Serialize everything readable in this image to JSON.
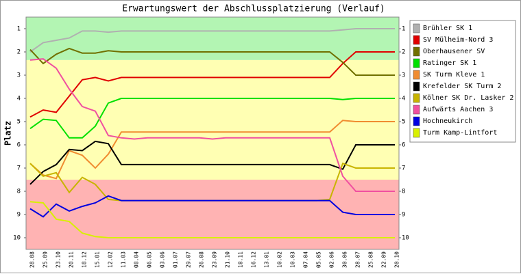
{
  "chart_data": {
    "type": "line",
    "title": "Erwartungswert der Abschlussplatzierung (Verlauf)",
    "y_label": "Platz",
    "categories": [
      "28.08",
      "25.09",
      "23.10",
      "20.11",
      "18.12",
      "15.01",
      "12.02",
      "11.03",
      "08.04",
      "06.05",
      "03.06",
      "01.07",
      "29.07",
      "26.08",
      "23.09",
      "21.10",
      "18.11",
      "16.12",
      "13.01",
      "10.02",
      "10.03",
      "07.04",
      "05.05",
      "02.06",
      "30.06",
      "28.07",
      "25.08",
      "22.09",
      "20.10"
    ],
    "ylim": [
      0.5,
      10.5
    ],
    "inverted": true,
    "yticks": [
      1,
      2,
      3,
      4,
      5,
      6,
      7,
      8,
      9,
      10
    ],
    "bands": [
      {
        "from": 0.5,
        "to": 2.35,
        "color": "#b3f5b3"
      },
      {
        "from": 2.35,
        "to": 7.5,
        "color": "#ffffb3"
      },
      {
        "from": 7.5,
        "to": 10.5,
        "color": "#ffb3b3"
      }
    ],
    "series": [
      {
        "name": "Brühler SK 1",
        "color": "#b0b0b0",
        "values": [
          2,
          1.6,
          1.5,
          1.4,
          1.1,
          1.1,
          1.15,
          1.1,
          1.1,
          1.1,
          1.1,
          1.1,
          1.1,
          1.1,
          1.1,
          1.1,
          1.1,
          1.1,
          1.1,
          1.1,
          1.1,
          1.1,
          1.1,
          1.1,
          1.05,
          1,
          1,
          1,
          1
        ]
      },
      {
        "name": "SV Mülheim-Nord 3",
        "color": "#e00000",
        "values": [
          4.8,
          4.5,
          4.6,
          3.9,
          3.2,
          3.1,
          3.25,
          3.1,
          3.1,
          3.1,
          3.1,
          3.1,
          3.1,
          3.1,
          3.1,
          3.1,
          3.1,
          3.1,
          3.1,
          3.1,
          3.1,
          3.1,
          3.1,
          3.1,
          2.5,
          2,
          2,
          2,
          2
        ]
      },
      {
        "name": "Oberhausener SV",
        "color": "#707000",
        "values": [
          1.9,
          2.5,
          2.1,
          1.85,
          2.05,
          2.05,
          1.95,
          2,
          2,
          2,
          2,
          2,
          2,
          2,
          2,
          2,
          2,
          2,
          2,
          2,
          2,
          2,
          2,
          2,
          2.45,
          3,
          3,
          3,
          3
        ]
      },
      {
        "name": "Ratinger SK 1",
        "color": "#00e000",
        "values": [
          5.3,
          4.9,
          4.95,
          5.7,
          5.7,
          5.2,
          4.2,
          4,
          4,
          4,
          4,
          4,
          4,
          4,
          4,
          4,
          4,
          4,
          4,
          4,
          4,
          4,
          4,
          4,
          4.05,
          4,
          4,
          4,
          4
        ]
      },
      {
        "name": "SK Turm Kleve 1",
        "color": "#f08c30",
        "values": [
          6.8,
          7.3,
          7.45,
          6.25,
          6.45,
          7,
          6.4,
          5.45,
          5.45,
          5.45,
          5.45,
          5.45,
          5.45,
          5.45,
          5.45,
          5.45,
          5.45,
          5.45,
          5.45,
          5.45,
          5.45,
          5.45,
          5.45,
          5.45,
          4.95,
          5,
          5,
          5,
          5
        ]
      },
      {
        "name": "Krefelder SK Turm 2",
        "color": "#000000",
        "values": [
          7.7,
          7.15,
          6.85,
          6.2,
          6.25,
          5.85,
          5.95,
          6.85,
          6.85,
          6.85,
          6.85,
          6.85,
          6.85,
          6.85,
          6.85,
          6.85,
          6.85,
          6.85,
          6.85,
          6.85,
          6.85,
          6.85,
          6.85,
          6.85,
          7.05,
          6,
          6,
          6,
          6
        ]
      },
      {
        "name": "Kölner SK Dr. Lasker 2",
        "color": "#c8b400",
        "values": [
          6.8,
          7.35,
          7.2,
          8.05,
          7.4,
          7.7,
          8.35,
          8.4,
          8.4,
          8.4,
          8.4,
          8.4,
          8.4,
          8.4,
          8.4,
          8.4,
          8.4,
          8.4,
          8.4,
          8.4,
          8.4,
          8.4,
          8.4,
          8.35,
          6.8,
          7,
          7,
          7,
          7
        ]
      },
      {
        "name": "Aufwärts Aachen 3",
        "color": "#f050a0",
        "values": [
          2.35,
          2.3,
          2.7,
          3.6,
          4.35,
          4.55,
          5.6,
          5.7,
          5.75,
          5.7,
          5.7,
          5.7,
          5.7,
          5.7,
          5.75,
          5.7,
          5.7,
          5.7,
          5.7,
          5.7,
          5.7,
          5.7,
          5.7,
          5.7,
          7.35,
          8,
          8,
          8,
          8
        ]
      },
      {
        "name": "Hochneukirch",
        "color": "#0000e0",
        "values": [
          8.75,
          9.1,
          8.55,
          8.85,
          8.65,
          8.5,
          8.2,
          8.4,
          8.4,
          8.4,
          8.4,
          8.4,
          8.4,
          8.4,
          8.4,
          8.4,
          8.4,
          8.4,
          8.4,
          8.4,
          8.4,
          8.4,
          8.4,
          8.4,
          8.9,
          9,
          9,
          9,
          9
        ]
      },
      {
        "name": "Turm Kamp-Lintfort",
        "color": "#d8f000",
        "values": [
          8.45,
          8.5,
          9.2,
          9.3,
          9.8,
          9.95,
          10,
          10,
          10,
          10,
          10,
          10,
          10,
          10,
          10,
          10,
          10,
          10,
          10,
          10,
          10,
          10,
          10,
          10,
          10,
          10,
          10,
          10,
          10
        ]
      }
    ]
  }
}
